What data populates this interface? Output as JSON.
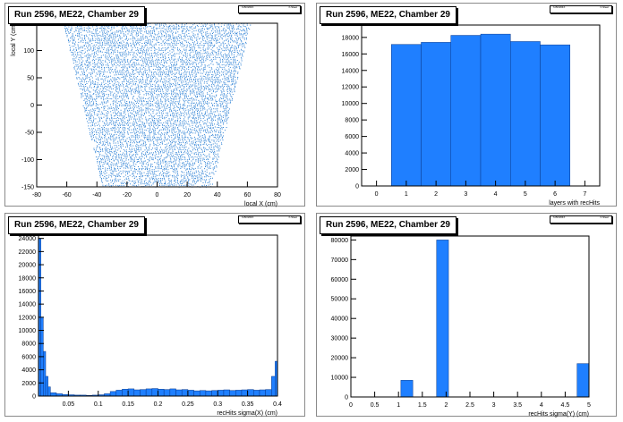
{
  "colors": {
    "fill": "#1f7fff",
    "edge": "#0a3a8c",
    "scatter": "#2a7fd4",
    "axis": "#000000"
  },
  "pads": [
    {
      "title": "Run 2596, ME22, Chamber 29",
      "stat_name": "h.BOW4X",
      "stat_entries": "h.Sleet"
    },
    {
      "title": "Run 2596, ME22, Chamber 29",
      "stat_name": "h.BOW4X",
      "stat_entries": "h.Sleet"
    },
    {
      "title": "Run 2596, ME22, Chamber 29",
      "stat_name": "h.BOW4X",
      "stat_entries": "h.Sleet"
    },
    {
      "title": "Run 2596, ME22, Chamber 29",
      "stat_name": "h.BOW4X",
      "stat_entries": "h.Sleet"
    }
  ],
  "chart_data": [
    {
      "type": "scatter",
      "title": "Run 2596, ME22, Chamber 29",
      "xlabel": "local X (cm)",
      "ylabel": "local Y (cm)",
      "xlim": [
        -80,
        80
      ],
      "ylim": [
        -150,
        150
      ],
      "xticks": [
        -80,
        -60,
        -40,
        -20,
        0,
        20,
        40,
        60,
        80
      ],
      "yticks": [
        -150,
        -100,
        -50,
        0,
        50,
        100
      ],
      "region": {
        "y": [
          -150,
          150
        ],
        "x_at_ymin": [
          -36,
          36
        ],
        "x_at_ymax": [
          -62,
          62
        ]
      }
    },
    {
      "type": "bar",
      "title": "Run 2596, ME22, Chamber 29",
      "xlabel": "layers with recHits",
      "ylabel": "",
      "xlim": [
        -0.5,
        7.5
      ],
      "ylim": [
        0,
        19500
      ],
      "xticks": [
        0,
        1,
        2,
        3,
        4,
        5,
        6,
        7
      ],
      "yticks": [
        0,
        2000,
        4000,
        6000,
        8000,
        10000,
        12000,
        14000,
        16000,
        18000
      ],
      "bin_edges": [
        0.5,
        1.5,
        2.5,
        3.5,
        4.5,
        5.5,
        6.5
      ],
      "values": [
        17150,
        17400,
        18250,
        18400,
        17500,
        17100
      ]
    },
    {
      "type": "bar",
      "title": "Run 2596, ME22, Chamber 29",
      "xlabel": "recHits sigma(X) (cm)",
      "ylabel": "",
      "xlim": [
        0,
        0.4
      ],
      "ylim": [
        0,
        24500
      ],
      "xticks": [
        0.05,
        0.1,
        0.15,
        0.2,
        0.25,
        0.3,
        0.35,
        0.4
      ],
      "yticks": [
        0,
        2000,
        4000,
        6000,
        8000,
        10000,
        12000,
        14000,
        16000,
        18000,
        20000,
        22000,
        24000
      ],
      "bin_edges": [
        0,
        0.004,
        0.008,
        0.012,
        0.016,
        0.02,
        0.03,
        0.04,
        0.05,
        0.06,
        0.07,
        0.08,
        0.09,
        0.1,
        0.11,
        0.12,
        0.13,
        0.14,
        0.15,
        0.16,
        0.17,
        0.18,
        0.19,
        0.2,
        0.21,
        0.22,
        0.23,
        0.24,
        0.25,
        0.26,
        0.27,
        0.28,
        0.29,
        0.3,
        0.31,
        0.32,
        0.33,
        0.34,
        0.35,
        0.36,
        0.37,
        0.38,
        0.39,
        0.396,
        0.4
      ],
      "values": [
        24000,
        12000,
        6800,
        3000,
        1400,
        500,
        350,
        250,
        200,
        150,
        150,
        100,
        150,
        200,
        350,
        700,
        900,
        1050,
        1100,
        950,
        1000,
        1100,
        1150,
        1050,
        1000,
        1100,
        950,
        1000,
        900,
        800,
        850,
        800,
        850,
        900,
        950,
        850,
        900,
        950,
        1000,
        900,
        950,
        1000,
        3000,
        5300
      ]
    },
    {
      "type": "bar",
      "title": "Run 2596, ME22, Chamber 29",
      "xlabel": "recHits sigma(Y) (cm)",
      "ylabel": "",
      "xlim": [
        0,
        5
      ],
      "ylim": [
        0,
        82000
      ],
      "xticks": [
        0,
        0.5,
        1,
        1.5,
        2,
        2.5,
        3,
        3.5,
        4,
        4.5,
        5
      ],
      "yticks": [
        0,
        10000,
        20000,
        30000,
        40000,
        50000,
        60000,
        70000,
        80000
      ],
      "bin_edges": [
        1.05,
        1.3,
        1.8,
        2.05,
        4.75,
        5.0
      ],
      "values": [
        8500,
        0,
        80000,
        0,
        17000
      ]
    }
  ]
}
